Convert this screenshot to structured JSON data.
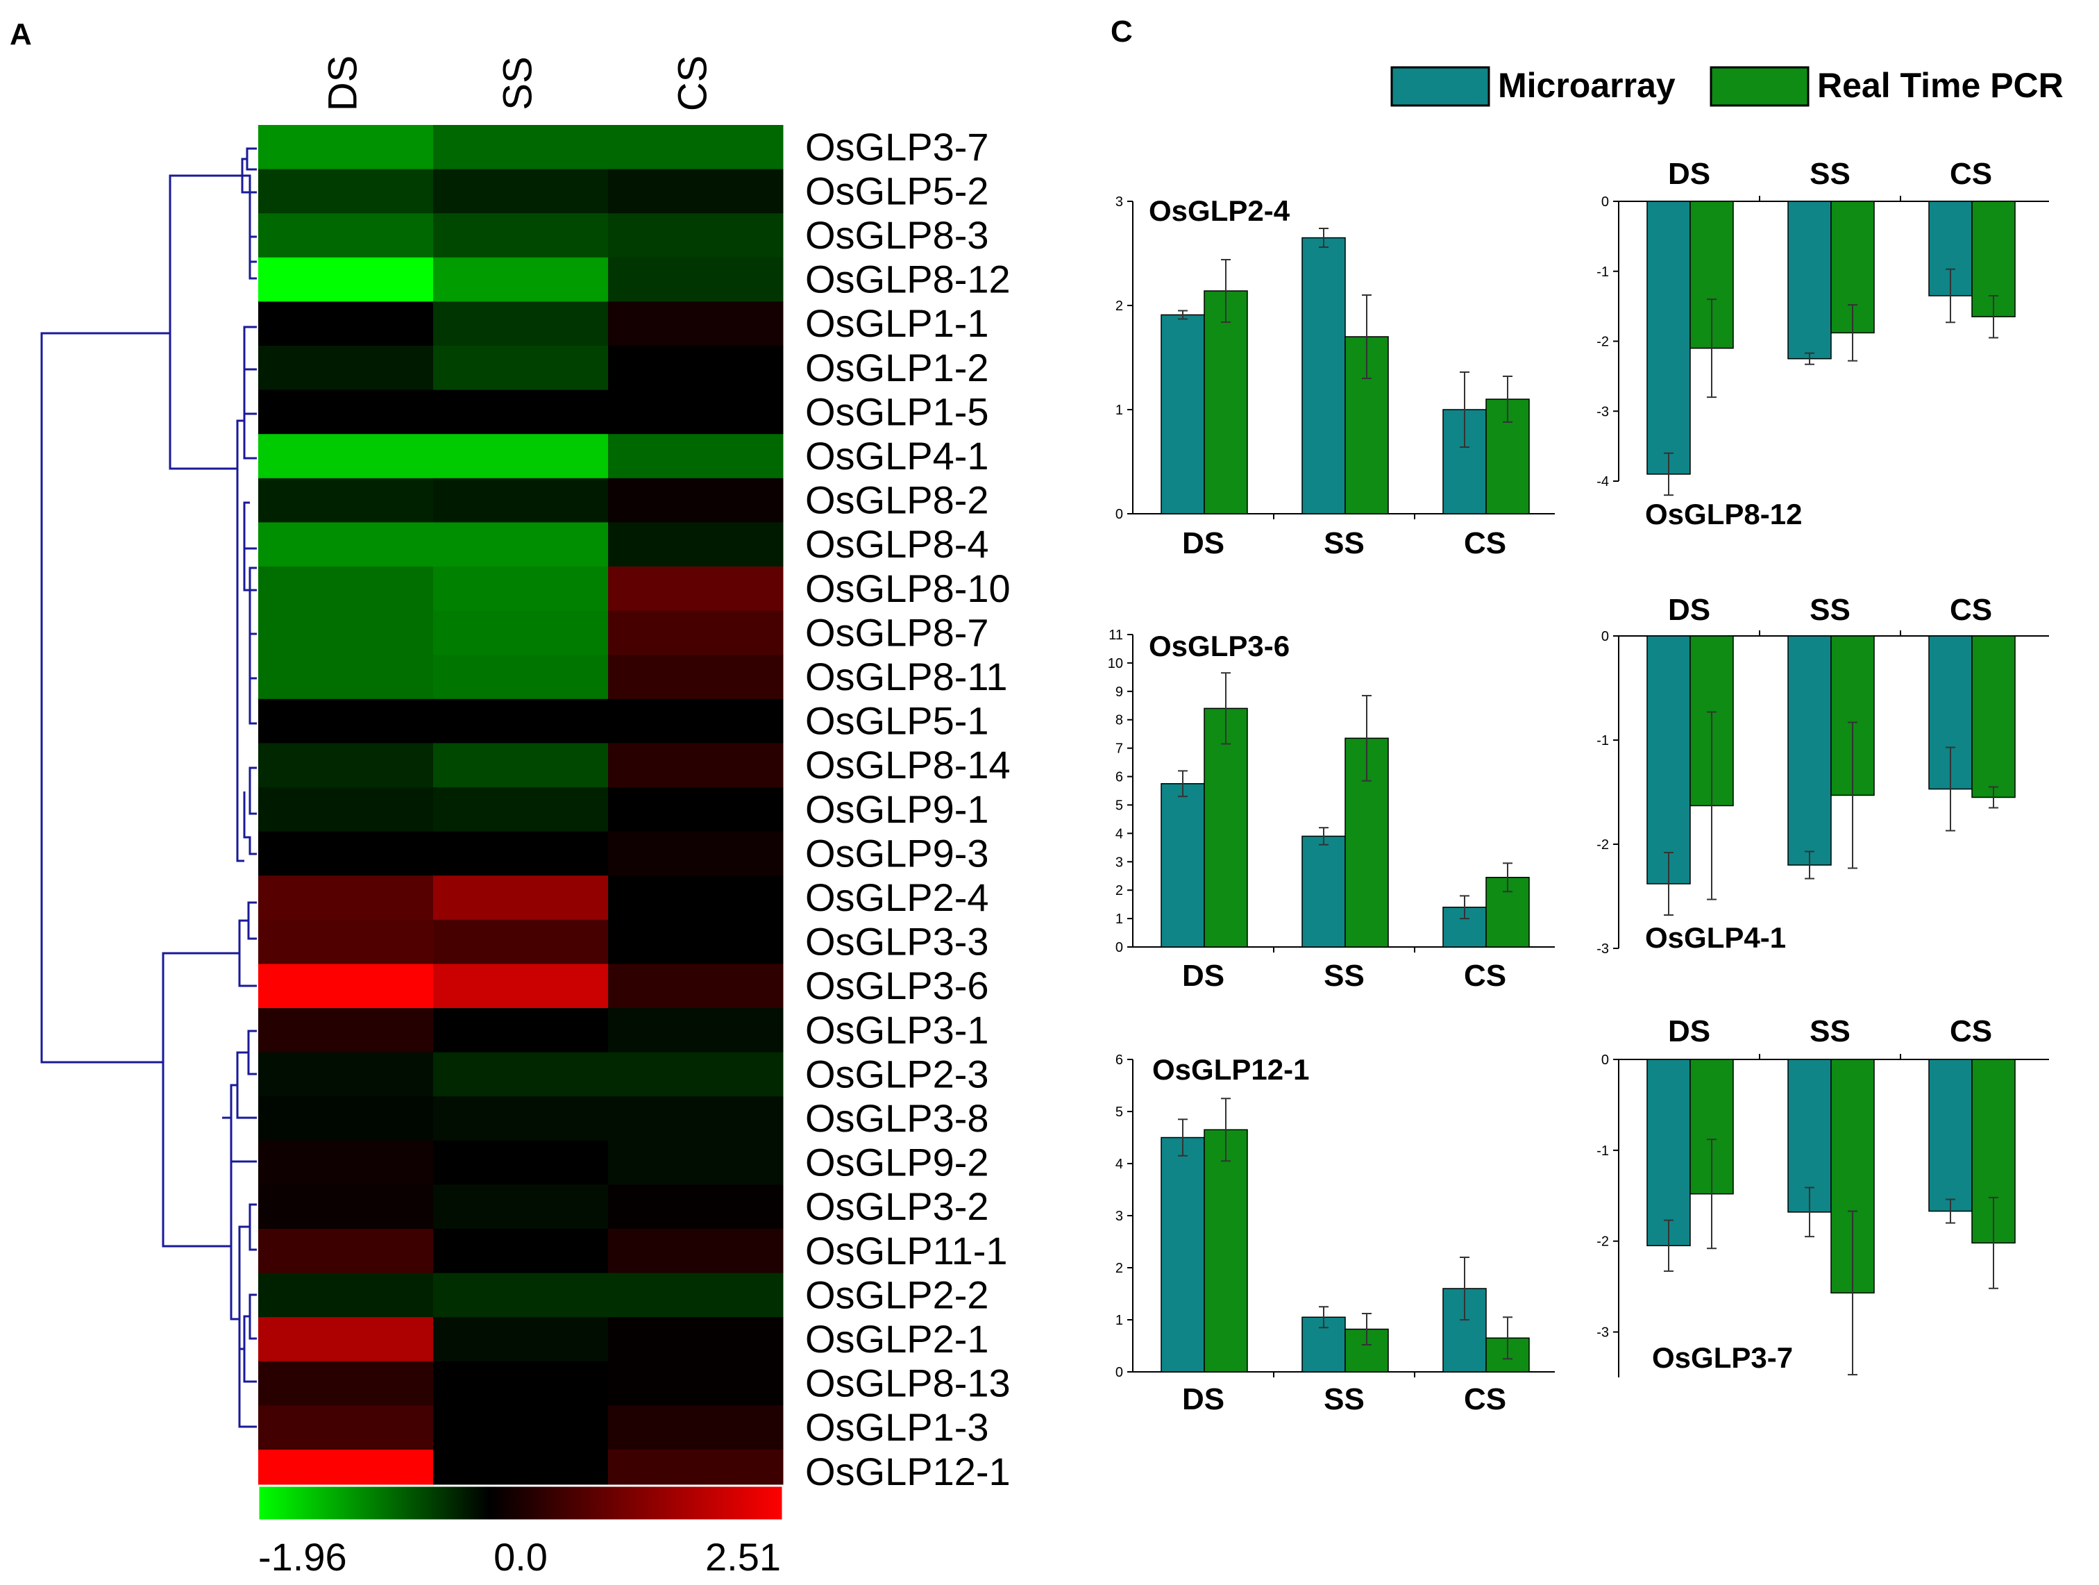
{
  "panel_labels": {
    "heatmap": "A",
    "bars": "C"
  },
  "colors": {
    "microarray": "#0f8587",
    "rtpcr": "#0e8c14",
    "dendrogram": "#1a1a99",
    "heat_low": "#00ff00",
    "heat_mid": "#000000",
    "heat_high": "#ff0000"
  },
  "chart_data": [
    {
      "type": "heatmap",
      "columns": [
        "DS",
        "SS",
        "CS"
      ],
      "rows": [
        "OsGLP3-7",
        "OsGLP5-2",
        "OsGLP8-3",
        "OsGLP8-12",
        "OsGLP1-1",
        "OsGLP1-2",
        "OsGLP1-5",
        "OsGLP4-1",
        "OsGLP8-2",
        "OsGLP8-4",
        "OsGLP8-10",
        "OsGLP8-7",
        "OsGLP8-11",
        "OsGLP5-1",
        "OsGLP8-14",
        "OsGLP9-1",
        "OsGLP9-3",
        "OsGLP2-4",
        "OsGLP3-3",
        "OsGLP3-6",
        "OsGLP3-1",
        "OsGLP2-3",
        "OsGLP3-8",
        "OsGLP9-2",
        "OsGLP3-2",
        "OsGLP11-1",
        "OsGLP2-2",
        "OsGLP2-1",
        "OsGLP8-13",
        "OsGLP1-3",
        "OsGLP12-1"
      ],
      "values": [
        [
          -1.12,
          -0.8,
          -0.8
        ],
        [
          -0.45,
          -0.25,
          -0.15
        ],
        [
          -0.8,
          -0.55,
          -0.45
        ],
        [
          -1.96,
          -1.2,
          -0.4
        ],
        [
          0.0,
          -0.4,
          0.2
        ],
        [
          -0.2,
          -0.5,
          0.0
        ],
        [
          0.0,
          0.0,
          0.0
        ],
        [
          -1.55,
          -1.55,
          -0.8
        ],
        [
          -0.25,
          -0.2,
          0.1
        ],
        [
          -1.1,
          -1.1,
          -0.2
        ],
        [
          -0.85,
          -1.0,
          0.95
        ],
        [
          -0.85,
          -0.95,
          0.7
        ],
        [
          -0.85,
          -0.9,
          0.5
        ],
        [
          0.0,
          0.0,
          0.0
        ],
        [
          -0.3,
          -0.55,
          0.4
        ],
        [
          -0.2,
          -0.25,
          0.0
        ],
        [
          0.0,
          0.0,
          0.15
        ],
        [
          0.85,
          1.45,
          0.0
        ],
        [
          0.8,
          0.7,
          0.0
        ],
        [
          2.51,
          2.0,
          0.45
        ],
        [
          0.35,
          0.0,
          -0.1
        ],
        [
          -0.1,
          -0.3,
          -0.3
        ],
        [
          -0.05,
          -0.1,
          -0.1
        ],
        [
          0.15,
          0.0,
          -0.1
        ],
        [
          0.1,
          -0.1,
          0.05
        ],
        [
          0.6,
          0.0,
          0.3
        ],
        [
          -0.25,
          -0.35,
          -0.35
        ],
        [
          1.7,
          -0.1,
          0.05
        ],
        [
          0.4,
          0.0,
          0.05
        ],
        [
          0.65,
          0.0,
          0.3
        ],
        [
          2.51,
          0.0,
          0.6
        ]
      ],
      "scale": {
        "min_label": "-1.96",
        "mid_label": "0.0",
        "max_label": "2.51",
        "min": -1.96,
        "max": 2.51
      }
    },
    {
      "type": "bar",
      "title": "OsGLP2-4",
      "categories": [
        "DS",
        "SS",
        "CS"
      ],
      "ylim": [
        0,
        3
      ],
      "yticks": [
        {
          "v": 0,
          "l": "0"
        },
        {
          "v": 1,
          "l": "1"
        },
        {
          "v": 2,
          "l": "2"
        },
        {
          "v": 3,
          "l": "3"
        }
      ],
      "series": [
        {
          "name": "Microarray",
          "values": [
            1.91,
            2.65,
            1.0
          ],
          "errors": [
            0.04,
            0.09,
            0.36
          ]
        },
        {
          "name": "Real Time PCR",
          "values": [
            2.14,
            1.7,
            1.1
          ],
          "errors": [
            0.3,
            0.4,
            0.22
          ]
        }
      ]
    },
    {
      "type": "bar",
      "title": "OsGLP8-12",
      "categories": [
        "DS",
        "SS",
        "CS"
      ],
      "ylim": [
        -4,
        0
      ],
      "yticks": [
        {
          "v": 0,
          "l": "0"
        },
        {
          "v": -1,
          "l": "-1"
        },
        {
          "v": -2,
          "l": "-2"
        },
        {
          "v": -3,
          "l": "-3"
        },
        {
          "v": -4,
          "l": "-4"
        }
      ],
      "series": [
        {
          "name": "Microarray",
          "values": [
            -3.9,
            -2.25,
            -1.35
          ],
          "errors": [
            0.3,
            0.08,
            0.38
          ]
        },
        {
          "name": "Real Time PCR",
          "values": [
            -2.1,
            -1.88,
            -1.65
          ],
          "errors": [
            0.7,
            0.4,
            0.3
          ]
        }
      ]
    },
    {
      "type": "bar",
      "title": "OsGLP3-6",
      "categories": [
        "DS",
        "SS",
        "CS"
      ],
      "ylim": [
        0,
        11
      ],
      "yticks": [
        {
          "v": 0,
          "l": "0"
        },
        {
          "v": 1,
          "l": "1"
        },
        {
          "v": 2,
          "l": "2"
        },
        {
          "v": 3,
          "l": "3"
        },
        {
          "v": 4,
          "l": "4"
        },
        {
          "v": 5,
          "l": "5"
        },
        {
          "v": 6,
          "l": "6"
        },
        {
          "v": 7,
          "l": "7"
        },
        {
          "v": 8,
          "l": "8"
        },
        {
          "v": 9,
          "l": "9"
        },
        {
          "v": 10,
          "l": "10"
        },
        {
          "v": 11,
          "l": "11"
        }
      ],
      "series": [
        {
          "name": "Microarray",
          "values": [
            5.75,
            3.9,
            1.4
          ],
          "errors": [
            0.45,
            0.3,
            0.4
          ]
        },
        {
          "name": "Real Time PCR",
          "values": [
            8.4,
            7.35,
            2.45
          ],
          "errors": [
            1.25,
            1.5,
            0.5
          ]
        }
      ]
    },
    {
      "type": "bar",
      "title": "OsGLP4-1",
      "categories": [
        "DS",
        "SS",
        "CS"
      ],
      "ylim": [
        -3,
        0
      ],
      "yticks": [
        {
          "v": 0,
          "l": "0"
        },
        {
          "v": -1,
          "l": "-1"
        },
        {
          "v": -2,
          "l": "-2"
        },
        {
          "v": -3,
          "l": "-3"
        }
      ],
      "series": [
        {
          "name": "Microarray",
          "values": [
            -2.38,
            -2.2,
            -1.47
          ],
          "errors": [
            0.3,
            0.13,
            0.4
          ]
        },
        {
          "name": "Real Time PCR",
          "values": [
            -1.63,
            -1.53,
            -1.55
          ],
          "errors": [
            0.9,
            0.7,
            0.1
          ]
        }
      ]
    },
    {
      "type": "bar",
      "title": "OsGLP12-1",
      "categories": [
        "DS",
        "SS",
        "CS"
      ],
      "ylim": [
        0,
        6
      ],
      "yticks": [
        {
          "v": 0,
          "l": "0"
        },
        {
          "v": 1,
          "l": "1"
        },
        {
          "v": 2,
          "l": "2"
        },
        {
          "v": 3,
          "l": "3"
        },
        {
          "v": 4,
          "l": "4"
        },
        {
          "v": 5,
          "l": "5"
        },
        {
          "v": 6,
          "l": "6"
        }
      ],
      "series": [
        {
          "name": "Microarray",
          "values": [
            4.5,
            1.05,
            1.6
          ],
          "errors": [
            0.35,
            0.2,
            0.6
          ]
        },
        {
          "name": "Real Time PCR",
          "values": [
            4.65,
            0.82,
            0.65
          ],
          "errors": [
            0.6,
            0.3,
            0.4
          ]
        }
      ]
    },
    {
      "type": "bar",
      "title": "OsGLP3-7",
      "categories": [
        "DS",
        "SS",
        "CS"
      ],
      "ylim": [
        -3.5,
        0
      ],
      "yticks": [
        {
          "v": 0,
          "l": "0"
        },
        {
          "v": -1,
          "l": "-1"
        },
        {
          "v": -2,
          "l": "-2"
        },
        {
          "v": -3,
          "l": "-3"
        }
      ],
      "series": [
        {
          "name": "Microarray",
          "values": [
            -2.05,
            -1.68,
            -1.67
          ],
          "errors": [
            0.28,
            0.27,
            0.13
          ]
        },
        {
          "name": "Real Time PCR",
          "values": [
            -1.48,
            -2.57,
            -2.02
          ],
          "errors": [
            0.6,
            0.9,
            0.5
          ]
        }
      ]
    }
  ]
}
